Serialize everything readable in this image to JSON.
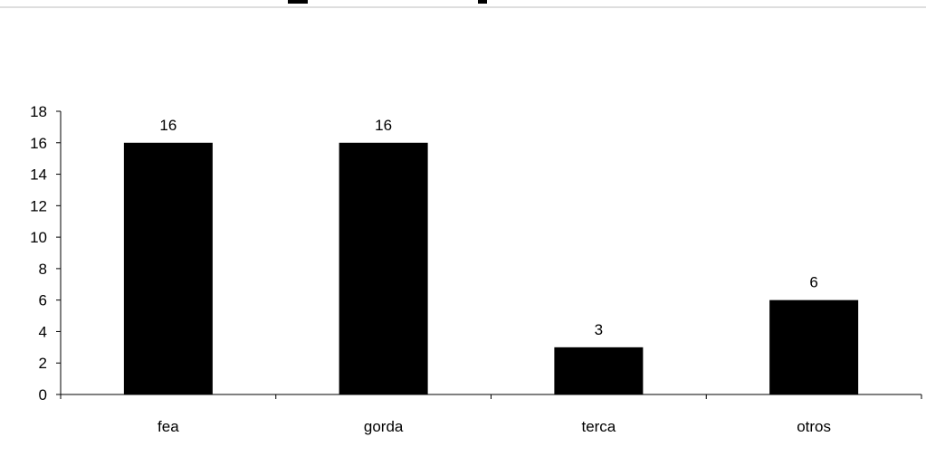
{
  "chart_data": {
    "type": "bar",
    "title": "",
    "xlabel": "",
    "ylabel": "",
    "categories": [
      "fea",
      "gorda",
      "terca",
      "otros"
    ],
    "values": [
      16,
      16,
      3,
      6
    ],
    "data_labels": [
      "16",
      "16",
      "3",
      "6"
    ],
    "ylim": [
      0,
      18
    ],
    "yticks": [
      0,
      2,
      4,
      6,
      8,
      10,
      12,
      14,
      16,
      18
    ],
    "ytick_labels": [
      "0",
      "2",
      "4",
      "6",
      "8",
      "10",
      "12",
      "14",
      "16",
      "18"
    ],
    "grid": false,
    "legend": "none",
    "bar_color": "#000000"
  }
}
